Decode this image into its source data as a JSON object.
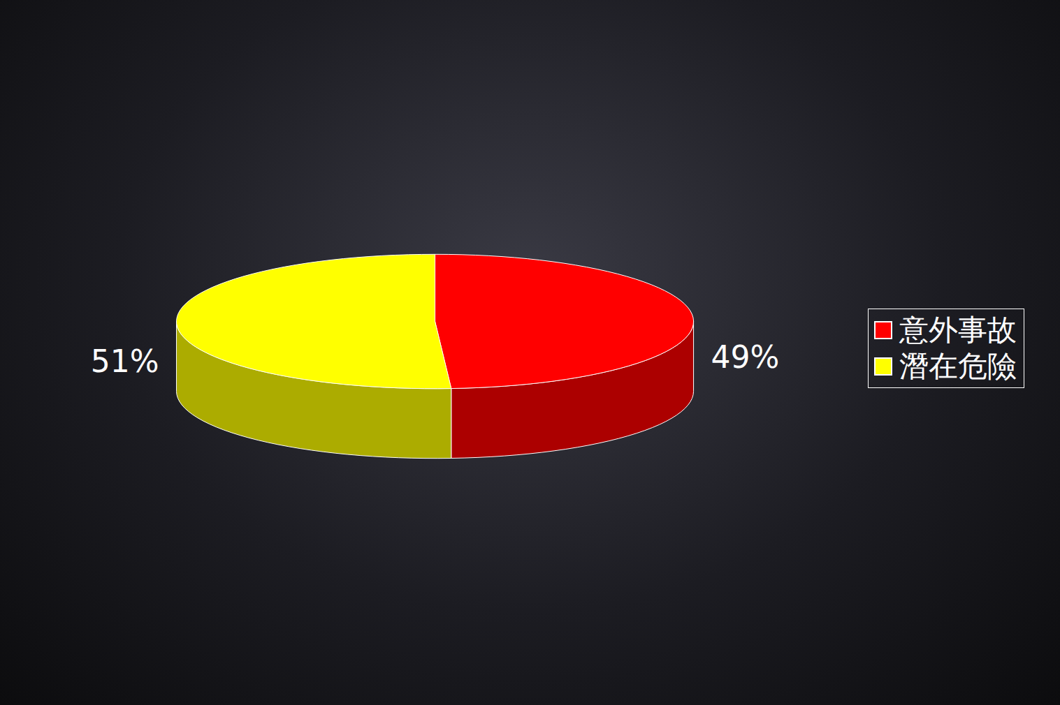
{
  "chart_data": {
    "type": "pie",
    "categories": [
      "意外事故",
      "潛在危險"
    ],
    "values": [
      49,
      51
    ],
    "value_labels": [
      "49%",
      "51%"
    ],
    "colors": [
      "#ff0000",
      "#ffff00"
    ],
    "data_labels": true,
    "legend": "right",
    "tick_labels": false
  }
}
